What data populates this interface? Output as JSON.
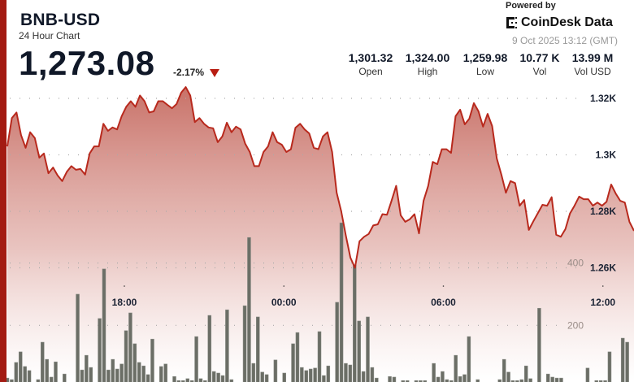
{
  "header": {
    "title": "BNB-USD",
    "subtitle": "24 Hour Chart",
    "price": "1,273.08",
    "change": "-2.17%",
    "change_direction_icon": "triangle-down-icon",
    "powered_by": "Powered by",
    "brand": "CoinDesk Data",
    "timestamp": "9 Oct 2025 13:12 (GMT)"
  },
  "stats": [
    {
      "value": "1,301.32",
      "label": "Open"
    },
    {
      "value": "1,324.00",
      "label": "High"
    },
    {
      "value": "1,259.98",
      "label": "Low"
    },
    {
      "value": "10.77 K",
      "label": "Vol"
    },
    {
      "value": "13.99 M",
      "label": "Vol USD"
    }
  ],
  "colors": {
    "accent": "#a31b12",
    "line": "#b8291d",
    "area_top": "#c4665c",
    "volume_bar": "#6b6e66"
  },
  "chart_data": {
    "type": "area",
    "x_tick_labels": [
      "18:00",
      "00:00",
      "06:00",
      "12:00"
    ],
    "x_tick_hours_from_start": [
      4.8,
      10.8,
      16.8,
      22.8
    ],
    "x_span_hours": 24,
    "price_axis": {
      "ticks": [
        1260,
        1280,
        1300,
        1320
      ],
      "tick_labels": [
        "1.26K",
        "1.28K",
        "1.3K",
        "1.32K"
      ],
      "grid": true
    },
    "volume_axis": {
      "ticks": [
        200,
        400
      ],
      "tick_labels": [
        "200",
        "400"
      ],
      "grid": true
    },
    "price": [
      1303,
      1313,
      1315,
      1307,
      1302.5,
      1308,
      1306,
      1299,
      1300.5,
      1293.5,
      1295.5,
      1292.7,
      1290.7,
      1294,
      1296,
      1294.7,
      1295,
      1293,
      1300.5,
      1303,
      1303,
      1311,
      1308.5,
      1309.7,
      1309,
      1313.7,
      1317,
      1319,
      1317,
      1321,
      1319,
      1315,
      1315.4,
      1319,
      1319,
      1317.7,
      1316.5,
      1318,
      1322,
      1324,
      1321,
      1311.6,
      1313,
      1311,
      1309.7,
      1309.4,
      1304.5,
      1306.5,
      1311.4,
      1308,
      1310,
      1309,
      1304,
      1301,
      1296,
      1296,
      1301,
      1303,
      1308,
      1304.5,
      1303.6,
      1301,
      1302,
      1309.6,
      1311,
      1309,
      1307.6,
      1302.5,
      1302,
      1306.5,
      1308,
      1301,
      1286.6,
      1280,
      1271.4,
      1263.6,
      1260,
      1269.4,
      1271,
      1272,
      1275,
      1275.4,
      1279,
      1278.8,
      1283.7,
      1289,
      1278.6,
      1276.3,
      1277.2,
      1279,
      1272.2,
      1283.7,
      1289,
      1297.5,
      1296.7,
      1302,
      1302,
      1300.7,
      1313.7,
      1316,
      1310.8,
      1312.8,
      1318.3,
      1315.4,
      1310,
      1314.5,
      1310.2,
      1298.7,
      1293,
      1286.6,
      1290.7,
      1290,
      1282,
      1284,
      1273.4,
      1276.5,
      1279.4,
      1282.3,
      1282,
      1285,
      1271.7,
      1271,
      1273.7,
      1279.2,
      1282,
      1285.2,
      1284.3,
      1284.3,
      1282,
      1283.1,
      1282,
      1283.4,
      1289.5,
      1286.3,
      1283.7,
      1283.1,
      1276.3,
      1273.1
    ],
    "volume": [
      31,
      26,
      81,
      115,
      68,
      55,
      10,
      26,
      146,
      91,
      34,
      83,
      10,
      44,
      10,
      10,
      300,
      57,
      104,
      65,
      10,
      222,
      381,
      57,
      91,
      60,
      76,
      183,
      240,
      141,
      81,
      70,
      42,
      156,
      10,
      68,
      76,
      10,
      36,
      23,
      23,
      29,
      23,
      164,
      29,
      23,
      232,
      52,
      47,
      39,
      250,
      26,
      10,
      10,
      263,
      482,
      78,
      227,
      50,
      42,
      10,
      89,
      10,
      47,
      10,
      141,
      177,
      65,
      55,
      60,
      63,
      180,
      39,
      70,
      10,
      274,
      529,
      78,
      73,
      394,
      214,
      52,
      227,
      65,
      31,
      10,
      10,
      36,
      34,
      10,
      23,
      23,
      10,
      23,
      23,
      23,
      10,
      78,
      34,
      52,
      26,
      23,
      104,
      36,
      42,
      164,
      10,
      26,
      10,
      10,
      10,
      10,
      26,
      91,
      50,
      23,
      23,
      26,
      70,
      29,
      10,
      255,
      10,
      44,
      34,
      31,
      31,
      10,
      10,
      10,
      10,
      10,
      63,
      10,
      23,
      23,
      23,
      115,
      10,
      10,
      159,
      146,
      10
    ]
  }
}
